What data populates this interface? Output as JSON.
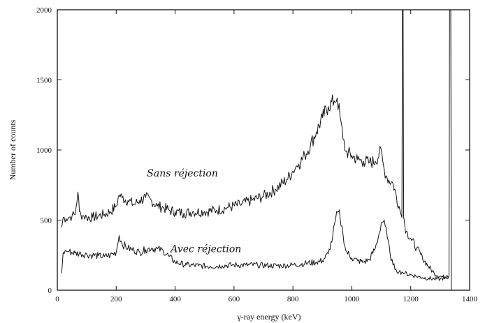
{
  "chart_data": {
    "type": "line",
    "title": "",
    "xlabel": "γ-ray energy (keV)",
    "ylabel": "Number of counts",
    "xlim": [
      0,
      1400
    ],
    "ylim": [
      0,
      2000
    ],
    "xticks": [
      0,
      200,
      400,
      600,
      800,
      1000,
      1200,
      1400
    ],
    "yticks": [
      0,
      500,
      1000,
      1500,
      2000
    ],
    "grid": false,
    "legend": "none",
    "series": [
      {
        "name": "Sans réjection",
        "color": "#111111",
        "x": [
          15,
          20,
          30,
          40,
          50,
          60,
          70,
          75,
          80,
          90,
          100,
          120,
          140,
          160,
          180,
          200,
          210,
          220,
          240,
          260,
          280,
          300,
          320,
          340,
          360,
          380,
          400,
          430,
          460,
          500,
          540,
          580,
          620,
          660,
          700,
          740,
          780,
          800,
          810,
          820,
          840,
          860,
          880,
          900,
          920,
          940,
          950,
          960,
          970,
          980,
          1000,
          1020,
          1040,
          1060,
          1080,
          1100,
          1105,
          1110,
          1120,
          1140,
          1160,
          1170,
          1172,
          1174,
          1176,
          1178,
          1180,
          1185,
          1200,
          1220,
          1240,
          1260,
          1280,
          1300,
          1320,
          1330,
          1332,
          1334,
          1336,
          1338,
          1340,
          1345,
          1350,
          1360,
          1380,
          1400
        ],
        "y": [
          450,
          520,
          510,
          520,
          530,
          540,
          700,
          560,
          540,
          530,
          520,
          520,
          530,
          540,
          560,
          600,
          680,
          660,
          640,
          610,
          640,
          660,
          640,
          600,
          590,
          570,
          560,
          550,
          560,
          560,
          570,
          590,
          610,
          640,
          670,
          720,
          790,
          850,
          880,
          900,
          960,
          1040,
          1130,
          1230,
          1310,
          1350,
          1370,
          1240,
          1080,
          990,
          960,
          930,
          920,
          910,
          920,
          1000,
          920,
          860,
          800,
          760,
          600,
          520,
          2000,
          2000,
          520,
          500,
          460,
          420,
          370,
          300,
          230,
          170,
          120,
          100,
          90,
          100,
          2000,
          2000,
          2000,
          0,
          0,
          0,
          0,
          0,
          0,
          0
        ]
      },
      {
        "name": "Avec réjection",
        "color": "#111111",
        "x": [
          15,
          20,
          30,
          40,
          60,
          80,
          100,
          120,
          140,
          160,
          180,
          200,
          210,
          220,
          240,
          260,
          280,
          300,
          320,
          340,
          360,
          380,
          400,
          440,
          480,
          520,
          560,
          600,
          640,
          680,
          720,
          760,
          800,
          840,
          880,
          900,
          920,
          935,
          945,
          955,
          960,
          970,
          980,
          1000,
          1020,
          1040,
          1060,
          1080,
          1090,
          1100,
          1110,
          1120,
          1130,
          1140,
          1150,
          1160,
          1170,
          1180,
          1200,
          1220,
          1240,
          1260,
          1280,
          1300,
          1320,
          1330
        ],
        "y": [
          120,
          270,
          280,
          275,
          265,
          260,
          255,
          250,
          245,
          240,
          250,
          270,
          390,
          330,
          300,
          285,
          270,
          290,
          300,
          295,
          280,
          240,
          200,
          180,
          175,
          170,
          175,
          180,
          180,
          180,
          175,
          175,
          180,
          190,
          200,
          210,
          260,
          380,
          510,
          560,
          520,
          400,
          280,
          230,
          210,
          200,
          220,
          300,
          380,
          480,
          500,
          380,
          260,
          180,
          150,
          130,
          130,
          120,
          110,
          100,
          90,
          85,
          80,
          80,
          90,
          100
        ]
      }
    ],
    "annotations": [
      {
        "text": "Sans réjection",
        "x": 425,
        "y": 810
      },
      {
        "text": "Avec réjection",
        "x": 505,
        "y": 270
      }
    ]
  }
}
